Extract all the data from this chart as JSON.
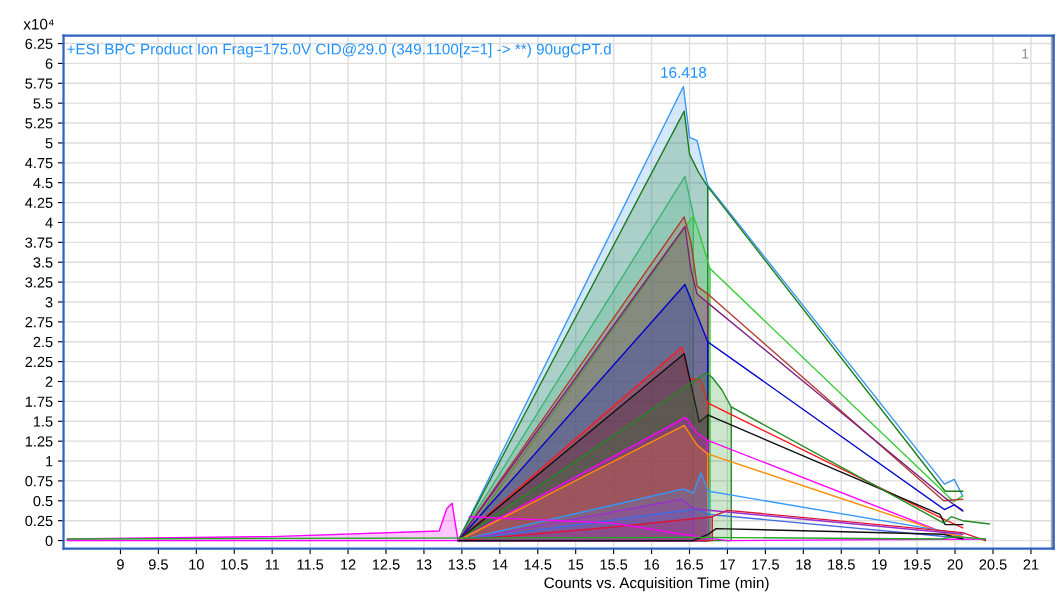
{
  "chart_data": {
    "type": "area",
    "title": "+ESI BPC Product Ion Frag=175.0V CID@29.0 (349.1100[z=1] -> **) 90ugCPT.d",
    "xlabel": "Counts vs. Acquisition Time (min)",
    "ylabel": "x10⁴",
    "xlim": [
      8.25,
      21.3
    ],
    "ylim": [
      -0.1,
      6.35
    ],
    "xticks": [
      9,
      9.5,
      10,
      10.5,
      11,
      11.5,
      12,
      12.5,
      13,
      13.5,
      14,
      14.5,
      15,
      15.5,
      16,
      16.5,
      17,
      17.5,
      18,
      18.5,
      19,
      19.5,
      20,
      20.5,
      21
    ],
    "yticks": [
      0,
      0.25,
      0.5,
      0.75,
      1,
      1.25,
      1.5,
      1.75,
      2,
      2.25,
      2.5,
      2.75,
      3,
      3.25,
      3.5,
      3.75,
      4,
      4.25,
      4.5,
      4.75,
      5,
      5.25,
      5.5,
      5.75,
      6,
      6.25
    ],
    "grid": true,
    "annotations": [
      {
        "text": "16.418",
        "x": 16.42,
        "y": 5.71
      },
      "1"
    ],
    "ref_lines": [
      {
        "axis": "x",
        "value": 21.28,
        "color": "#aaaaaa"
      }
    ],
    "series": [
      {
        "color": "#3a96f0",
        "x": [
          13.45,
          16.42,
          16.5,
          16.6,
          16.74
        ],
        "values": [
          0,
          5.71,
          5.07,
          5.03,
          4.47
        ]
      },
      {
        "color": "#3a96f0",
        "type": "line",
        "x": [
          16.74,
          19.86,
          19.99,
          20.1
        ],
        "values": [
          4.47,
          0.71,
          0.77,
          0.56
        ]
      },
      {
        "color": "#1b7d1b",
        "x": [
          13.45,
          16.43,
          16.5,
          16.62,
          16.74
        ],
        "values": [
          0,
          5.4,
          4.86,
          4.63,
          4.45
        ]
      },
      {
        "color": "#1b7d1b",
        "type": "line",
        "x": [
          16.74,
          19.87,
          20.1
        ],
        "values": [
          4.45,
          0.62,
          0.62
        ]
      },
      {
        "color": "#3cb371",
        "x": [
          13.45,
          16.44,
          16.55
        ],
        "values": [
          0,
          4.58,
          4.1
        ]
      },
      {
        "color": "#33cc33",
        "x": [
          13.5,
          16.55,
          16.6,
          16.77
        ],
        "values": [
          0,
          4.08,
          3.95,
          3.42
        ]
      },
      {
        "color": "#33cc33",
        "type": "line",
        "x": [
          16.77,
          19.98,
          20.1
        ],
        "values": [
          3.42,
          0.49,
          0.56
        ]
      },
      {
        "color": "#b03a2e",
        "x": [
          13.45,
          16.43,
          16.52,
          16.6,
          16.74
        ],
        "values": [
          0,
          4.07,
          3.75,
          3.2,
          3.1
        ]
      },
      {
        "color": "#b03a2e",
        "type": "line",
        "x": [
          16.74,
          19.85,
          20.1
        ],
        "values": [
          3.1,
          0.5,
          0.52
        ]
      },
      {
        "color": "#7f1f7f",
        "x": [
          13.45,
          16.44,
          16.52,
          16.6,
          16.74
        ],
        "values": [
          0,
          3.95,
          3.4,
          3.1,
          2.99
        ]
      },
      {
        "color": "#7f1f7f",
        "type": "line",
        "x": [
          16.74,
          19.85,
          20.1
        ],
        "values": [
          2.99,
          0.55,
          0.37
        ]
      },
      {
        "color": "#0000cc",
        "x": [
          13.45,
          16.44,
          16.74
        ],
        "values": [
          0,
          3.22,
          2.5
        ]
      },
      {
        "color": "#0000cc",
        "type": "line",
        "x": [
          16.74,
          19.86,
          19.99,
          20.1
        ],
        "values": [
          2.5,
          0.39,
          0.45,
          0.38
        ]
      },
      {
        "color": "#ff1a1a",
        "x": [
          13.45,
          16.4,
          16.5,
          16.65,
          16.74
        ],
        "values": [
          0,
          2.43,
          2.04,
          2.02,
          1.73
        ]
      },
      {
        "color": "#ff1a1a",
        "type": "line",
        "x": [
          16.74,
          19.87,
          20.1
        ],
        "values": [
          1.73,
          0.26,
          0.16
        ]
      },
      {
        "color": "#111111",
        "x": [
          13.45,
          16.43,
          16.63,
          16.74
        ],
        "values": [
          0,
          2.35,
          1.49,
          1.58
        ]
      },
      {
        "color": "#111111",
        "type": "line",
        "x": [
          16.74,
          19.8,
          19.87,
          20.1
        ],
        "values": [
          1.58,
          0.33,
          0.2,
          0.2
        ]
      },
      {
        "color": "#228b22",
        "x": [
          13.45,
          16.72,
          16.8,
          16.93,
          17.05
        ],
        "values": [
          0,
          2.11,
          2.05,
          1.89,
          1.68
        ]
      },
      {
        "color": "#228b22",
        "type": "line",
        "x": [
          17.05,
          19.85,
          19.95,
          20.1,
          20.45
        ],
        "values": [
          1.68,
          0.22,
          0.3,
          0.25,
          0.21
        ]
      },
      {
        "color": "#ff00ff",
        "x": [
          8.3,
          11,
          13.2,
          13.3,
          13.37,
          13.45,
          16.45,
          16.6,
          16.74
        ],
        "values": [
          0.02,
          0.05,
          0.12,
          0.4,
          0.47,
          0,
          1.55,
          1.35,
          1.26
        ]
      },
      {
        "color": "#ff00ff",
        "type": "line",
        "x": [
          16.74,
          19.85,
          20.1
        ],
        "values": [
          1.26,
          0.1,
          0.05
        ]
      },
      {
        "color": "#ff8c00",
        "x": [
          13.45,
          16.43,
          16.6,
          16.74
        ],
        "values": [
          0,
          1.45,
          1.2,
          1.09
        ]
      },
      {
        "color": "#ff8c00",
        "type": "line",
        "x": [
          16.74,
          19.85,
          20.1
        ],
        "values": [
          1.09,
          0.1,
          0.05
        ]
      },
      {
        "color": "#3399ff",
        "x": [
          13.45,
          16.42,
          16.55,
          16.65,
          16.75
        ],
        "values": [
          0,
          0.65,
          0.6,
          0.85,
          0.62
        ]
      },
      {
        "color": "#3399ff",
        "type": "line",
        "x": [
          16.75,
          20.1
        ],
        "values": [
          0.62,
          0.08
        ]
      },
      {
        "color": "#9932cc",
        "x": [
          13.45,
          16.4,
          16.55
        ],
        "values": [
          0,
          0.52,
          0.4
        ]
      },
      {
        "color": "#9932cc",
        "type": "line",
        "x": [
          16.55,
          20.1
        ],
        "values": [
          0.4,
          0.08
        ]
      },
      {
        "color": "#4169e1",
        "x": [
          13.45,
          16.6,
          16.75
        ],
        "values": [
          0,
          0.4,
          0.33
        ]
      },
      {
        "color": "#4169e1",
        "type": "line",
        "x": [
          16.75,
          20.1
        ],
        "values": [
          0.33,
          0.03
        ]
      },
      {
        "color": "#dc143c",
        "x": [
          13.45,
          15.5,
          16.8
        ],
        "values": [
          0,
          0.17,
          0.3
        ]
      },
      {
        "color": "#dc143c",
        "type": "line",
        "x": [
          16.8,
          17.0,
          20.1,
          20.4
        ],
        "values": [
          0.3,
          0.38,
          0.1,
          0
        ]
      },
      {
        "color": "#ff00ff",
        "type": "line",
        "x": [
          13.6,
          15.5,
          16.6,
          17.0,
          20.4
        ],
        "values": [
          0.3,
          0.22,
          0.05,
          0,
          0.02
        ]
      },
      {
        "color": "#111111",
        "type": "line",
        "x": [
          13.45,
          16.55,
          16.75,
          16.85,
          19.85,
          20.1
        ],
        "values": [
          0,
          0,
          0.08,
          0.15,
          0.08,
          0.02
        ]
      },
      {
        "color": "#22aa22",
        "type": "line",
        "x": [
          8.3,
          16.6,
          19.8,
          20.0,
          20.4
        ],
        "values": [
          0.02,
          0.04,
          0.02,
          0.05,
          0.02
        ]
      }
    ]
  }
}
